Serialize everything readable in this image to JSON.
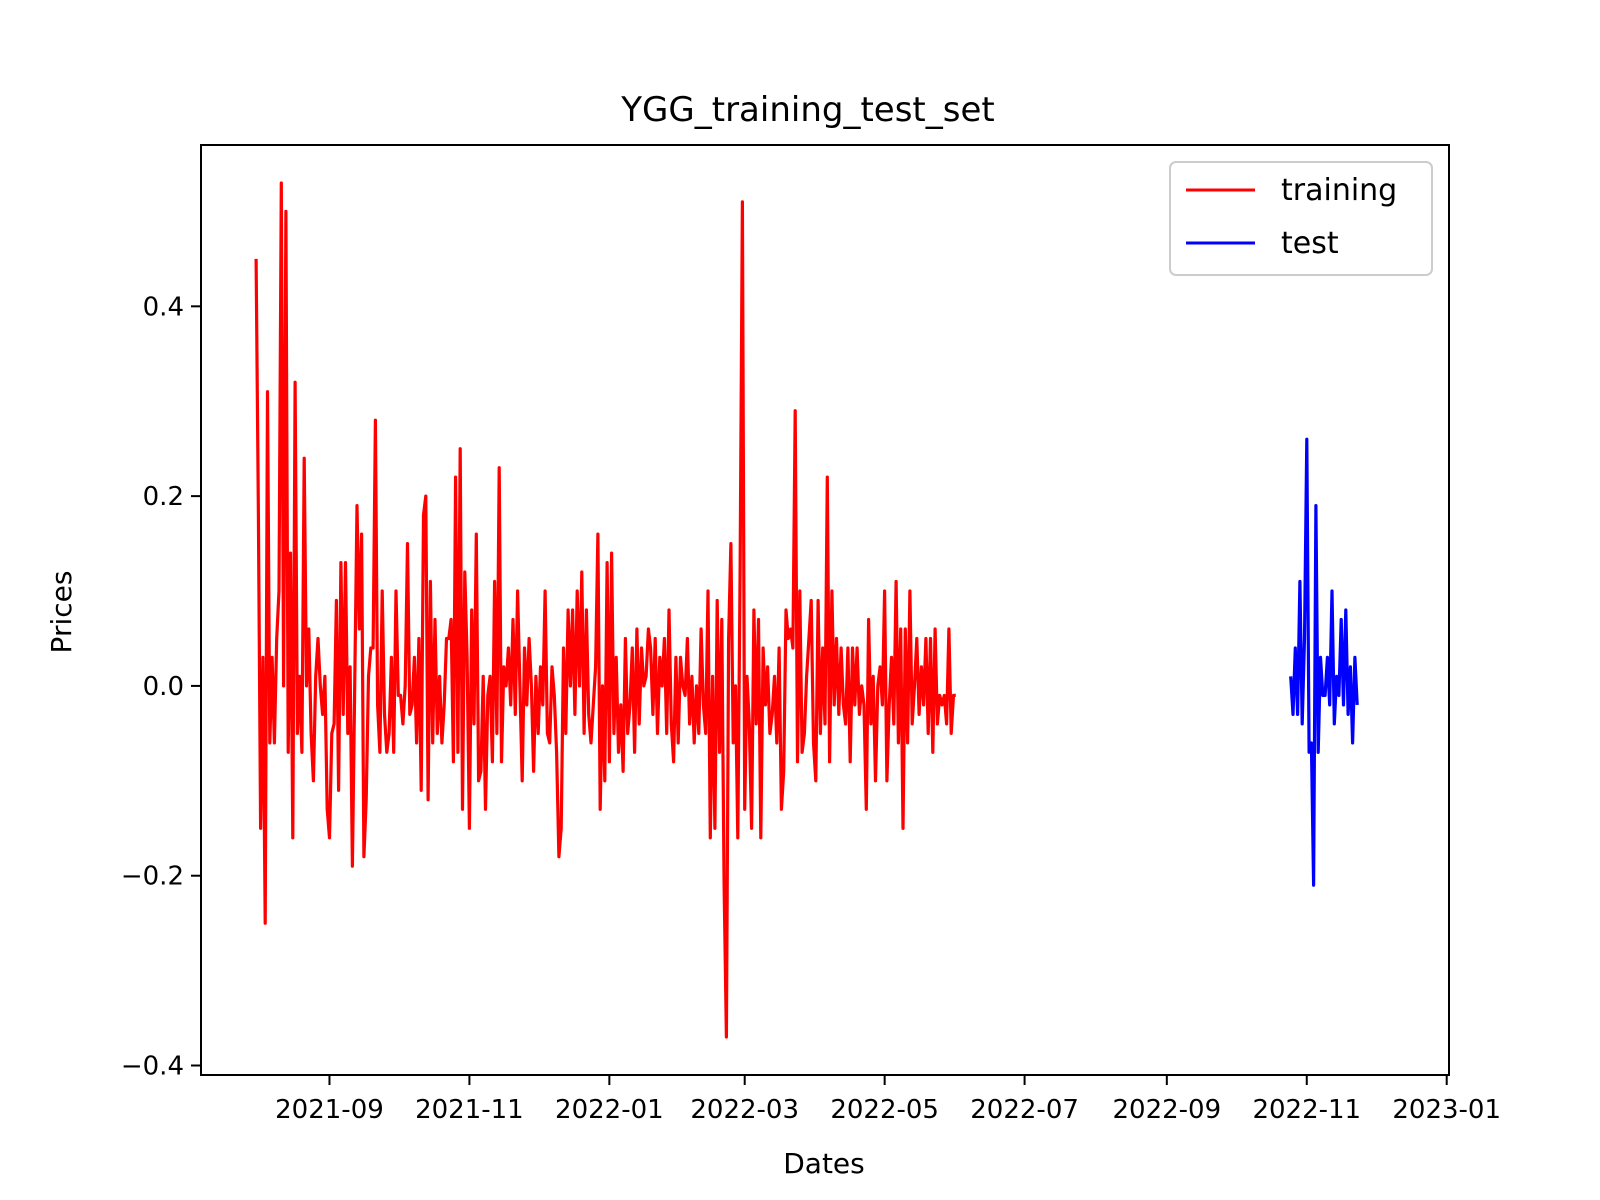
{
  "chart_data": {
    "type": "line",
    "title": "YGG_training_test_set",
    "xlabel": "Dates",
    "ylabel": "Prices",
    "xlim": [
      "2021-07-07",
      "2023-01-02"
    ],
    "ylim": [
      -0.41,
      0.57
    ],
    "x_ticks": [
      "2021-09",
      "2021-11",
      "2022-01",
      "2022-03",
      "2022-05",
      "2022-07",
      "2022-09",
      "2022-11",
      "2023-01"
    ],
    "y_ticks": [
      0.4,
      0.2,
      0.0,
      -0.2,
      -0.4
    ],
    "y_tick_labels": [
      "0.4",
      "0.2",
      "0.0",
      "−0.2",
      "−0.4"
    ],
    "grid": false,
    "legend_position": "top-right",
    "series": [
      {
        "name": "training",
        "color": "#ff0000",
        "start": "2021-07-31",
        "values": [
          0.45,
          0.18,
          -0.15,
          0.03,
          -0.25,
          0.31,
          -0.06,
          0.03,
          -0.06,
          0.05,
          0.1,
          0.53,
          0.0,
          0.5,
          -0.07,
          0.14,
          -0.16,
          0.32,
          -0.05,
          0.01,
          -0.07,
          0.24,
          0.0,
          0.06,
          -0.05,
          -0.1,
          0.01,
          0.05,
          0.0,
          -0.03,
          0.01,
          -0.13,
          -0.16,
          -0.05,
          -0.04,
          0.09,
          -0.11,
          0.13,
          -0.03,
          0.13,
          -0.05,
          0.02,
          -0.19,
          0.0,
          0.19,
          0.06,
          0.16,
          -0.18,
          -0.12,
          0.01,
          0.04,
          0.04,
          0.28,
          -0.02,
          -0.07,
          0.1,
          -0.03,
          -0.07,
          -0.05,
          0.03,
          -0.07,
          0.1,
          -0.01,
          -0.01,
          -0.04,
          0.0,
          0.15,
          -0.03,
          -0.02,
          0.03,
          -0.06,
          0.05,
          -0.11,
          0.18,
          0.2,
          -0.12,
          0.11,
          -0.06,
          0.07,
          -0.05,
          0.01,
          -0.06,
          -0.02,
          0.05,
          0.05,
          0.07,
          -0.08,
          0.22,
          -0.07,
          0.25,
          -0.13,
          0.12,
          0.03,
          -0.15,
          0.08,
          -0.04,
          0.16,
          -0.1,
          -0.09,
          0.01,
          -0.13,
          -0.01,
          0.01,
          -0.08,
          0.11,
          -0.05,
          0.23,
          -0.08,
          0.02,
          0.0,
          0.04,
          -0.02,
          0.07,
          -0.03,
          0.1,
          0.0,
          -0.1,
          0.04,
          -0.02,
          0.05,
          0.0,
          -0.09,
          0.01,
          -0.05,
          0.02,
          -0.02,
          0.1,
          -0.05,
          -0.06,
          0.02,
          -0.01,
          -0.07,
          -0.18,
          -0.15,
          0.04,
          -0.05,
          0.08,
          0.0,
          0.08,
          -0.03,
          0.1,
          0.0,
          0.12,
          -0.05,
          0.08,
          -0.03,
          -0.06,
          -0.02,
          0.02,
          0.16,
          -0.13,
          0.0,
          -0.1,
          0.13,
          -0.08,
          0.14,
          -0.05,
          0.03,
          -0.07,
          -0.02,
          -0.09,
          0.05,
          -0.05,
          -0.02,
          0.04,
          -0.07,
          0.06,
          -0.04,
          0.04,
          0.0,
          0.01,
          0.06,
          0.04,
          -0.03,
          0.05,
          -0.05,
          0.03,
          0.0,
          0.05,
          -0.05,
          0.08,
          -0.04,
          -0.08,
          0.03,
          -0.06,
          0.03,
          0.0,
          -0.01,
          0.05,
          -0.04,
          0.01,
          -0.06,
          0.0,
          -0.05,
          0.06,
          -0.02,
          -0.05,
          0.1,
          -0.16,
          0.01,
          -0.15,
          0.09,
          -0.07,
          0.07,
          -0.21,
          -0.37,
          0.05,
          0.15,
          -0.06,
          0.0,
          -0.16,
          0.12,
          0.51,
          -0.13,
          0.01,
          -0.04,
          -0.15,
          0.08,
          -0.04,
          0.07,
          -0.16,
          0.04,
          -0.02,
          0.02,
          -0.05,
          -0.03,
          0.01,
          -0.06,
          0.04,
          -0.13,
          -0.09,
          0.08,
          0.05,
          0.06,
          0.04,
          0.29,
          -0.08,
          0.1,
          -0.07,
          -0.05,
          0.01,
          0.05,
          0.09,
          -0.06,
          -0.1,
          0.09,
          -0.05,
          0.04,
          -0.04,
          0.22,
          -0.08,
          0.1,
          -0.02,
          0.05,
          -0.03,
          0.04,
          -0.02,
          -0.04,
          0.04,
          -0.08,
          0.04,
          -0.02,
          0.04,
          -0.03,
          0.0,
          -0.02,
          -0.13,
          0.07,
          -0.04,
          0.01,
          -0.1,
          0.0,
          0.02,
          -0.02,
          0.1,
          -0.1,
          -0.02,
          0.03,
          -0.04,
          0.11,
          -0.06,
          0.06,
          -0.15,
          0.06,
          -0.06,
          0.1,
          -0.04,
          0.0,
          0.05,
          -0.03,
          0.02,
          -0.02,
          0.05,
          -0.05,
          0.05,
          -0.07,
          0.06,
          -0.04,
          -0.01,
          -0.02,
          -0.01,
          -0.04,
          0.06,
          -0.05,
          -0.01,
          -0.01
        ]
      },
      {
        "name": "test",
        "color": "#0000ff",
        "start": "2022-10-25",
        "values": [
          0.01,
          -0.03,
          0.04,
          -0.03,
          0.11,
          -0.04,
          0.05,
          0.26,
          -0.07,
          -0.06,
          -0.21,
          0.19,
          -0.07,
          0.03,
          -0.01,
          -0.01,
          0.03,
          -0.02,
          0.1,
          -0.04,
          0.01,
          -0.01,
          0.07,
          -0.02,
          0.08,
          -0.03,
          0.02,
          -0.06,
          0.03,
          -0.02
        ]
      }
    ]
  }
}
